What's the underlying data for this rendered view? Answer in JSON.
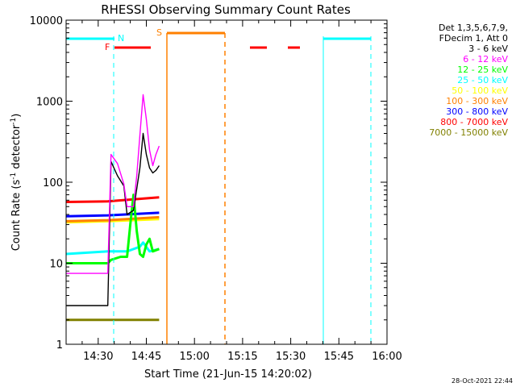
{
  "chart_data": {
    "type": "line",
    "title": "RHESSI Observing Summary Count Rates",
    "xlabel": "Start Time (21-Jun-15 14:20:02)",
    "ylabel": "Count Rate (s",
    "ylabel_sup1": "-1",
    "ylabel_mid": " detector",
    "ylabel_sup2": "-1",
    "ylabel_end": ")",
    "yscale": "log",
    "xlim_min": [
      20,
      120
    ],
    "ylim": [
      1,
      10000
    ],
    "x_ticks": [
      {
        "min": 30,
        "label": "14:30"
      },
      {
        "min": 45,
        "label": "14:45"
      },
      {
        "min": 60,
        "label": "15:00"
      },
      {
        "min": 75,
        "label": "15:15"
      },
      {
        "min": 90,
        "label": "15:30"
      },
      {
        "min": 105,
        "label": "15:45"
      },
      {
        "min": 120,
        "label": "16:00"
      }
    ],
    "y_ticks": [
      {
        "value": 1,
        "label": "1"
      },
      {
        "value": 10,
        "label": "10"
      },
      {
        "value": 100,
        "label": "100"
      },
      {
        "value": 1000,
        "label": "1000"
      },
      {
        "value": 10000,
        "label": "10000"
      }
    ],
    "legend_header": [
      "Det 1,3,5,6,7,9,",
      "FDecim 1, Att 0"
    ],
    "series": [
      {
        "name": "3 - 6 keV",
        "color": "#000000",
        "points": [
          [
            20,
            3
          ],
          [
            27,
            3
          ],
          [
            33,
            3
          ],
          [
            34,
            180
          ],
          [
            36,
            120
          ],
          [
            38,
            90
          ],
          [
            39,
            40
          ],
          [
            41,
            45
          ],
          [
            43,
            150
          ],
          [
            44,
            400
          ],
          [
            45,
            220
          ],
          [
            46,
            150
          ],
          [
            47,
            130
          ],
          [
            48,
            140
          ],
          [
            49,
            160
          ]
        ]
      },
      {
        "name": "6 - 12 keV",
        "color": "#ff00ff",
        "points": [
          [
            20,
            7.5
          ],
          [
            33,
            7.5
          ],
          [
            34,
            220
          ],
          [
            36,
            170
          ],
          [
            38,
            95
          ],
          [
            39,
            50
          ],
          [
            41,
            50
          ],
          [
            42,
            120
          ],
          [
            43,
            380
          ],
          [
            44,
            1200
          ],
          [
            45,
            600
          ],
          [
            46,
            250
          ],
          [
            47,
            160
          ],
          [
            48,
            220
          ],
          [
            49,
            280
          ]
        ]
      },
      {
        "name": "12 - 25 keV",
        "color": "#00ff00",
        "points": [
          [
            20,
            10
          ],
          [
            33,
            10
          ],
          [
            34,
            11
          ],
          [
            37,
            12
          ],
          [
            39,
            12
          ],
          [
            40,
            30
          ],
          [
            41,
            70
          ],
          [
            42,
            25
          ],
          [
            43,
            13
          ],
          [
            44,
            12
          ],
          [
            45,
            17
          ],
          [
            46,
            20
          ],
          [
            47,
            14
          ],
          [
            49,
            15
          ]
        ]
      },
      {
        "name": "25 - 50 keV",
        "color": "#00ffff",
        "points": [
          [
            20,
            13
          ],
          [
            33,
            14
          ],
          [
            36,
            14
          ],
          [
            39,
            14
          ],
          [
            43,
            16
          ],
          [
            44,
            18
          ],
          [
            46,
            14
          ],
          [
            49,
            15
          ]
        ]
      },
      {
        "name": "50 - 100 keV",
        "color": "#ffff00",
        "points": [
          [
            20,
            32
          ],
          [
            33,
            33
          ],
          [
            49,
            35
          ]
        ]
      },
      {
        "name": "100 - 300 keV",
        "color": "#ff8000",
        "points": [
          [
            20,
            33
          ],
          [
            33,
            34
          ],
          [
            49,
            37
          ]
        ]
      },
      {
        "name": "300 - 800 keV",
        "color": "#0000ff",
        "points": [
          [
            20,
            38
          ],
          [
            33,
            39
          ],
          [
            49,
            42
          ]
        ]
      },
      {
        "name": "800 - 7000 keV",
        "color": "#ff0000",
        "points": [
          [
            20,
            57
          ],
          [
            33,
            58
          ],
          [
            49,
            65
          ]
        ]
      },
      {
        "name": "7000 - 15000 keV",
        "color": "#808000",
        "points": [
          [
            20,
            2
          ],
          [
            33,
            2
          ],
          [
            49,
            2
          ]
        ]
      }
    ],
    "annotations": {
      "night_flag": "N",
      "saa_flag": "S",
      "flare_flag": "F"
    }
  },
  "footer": {
    "timestamp": "28-Oct-2021 22:44"
  }
}
